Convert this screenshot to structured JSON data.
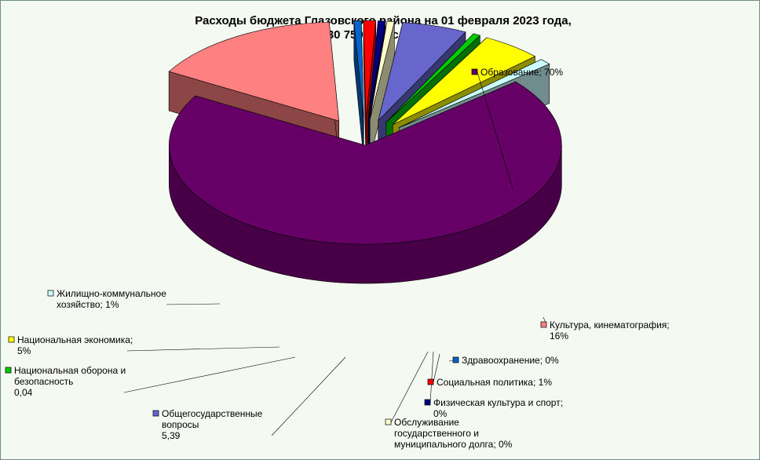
{
  "chart_data": {
    "type": "pie",
    "title_lines": [
      "Расходы бюджета Глазовского района на 01  февраля 2023 года,",
      "30 750,3 тыс. руб.,",
      "в %"
    ],
    "slices": [
      {
        "category": "Образование",
        "value": 70,
        "color": "#660066",
        "label_lines": [
          "Образование;  70%"
        ]
      },
      {
        "category": "Культура, кинематография",
        "value": 16,
        "color": "#ff8080",
        "label_lines": [
          "Культура,  кинематография;",
          "16%"
        ]
      },
      {
        "category": "Здравоохранение",
        "value": 0,
        "color": "#0066cc",
        "label_lines": [
          "Здравоохранение;  0%"
        ]
      },
      {
        "category": "Социальная политика",
        "value": 1,
        "color": "#ff0000",
        "label_lines": [
          "Социальная  политика;  1%"
        ]
      },
      {
        "category": "Физическая культура и спорт",
        "value": 0,
        "color": "#000080",
        "label_lines": [
          "Физическая культура  и спорт;",
          "0%"
        ]
      },
      {
        "category": "Обслуживание государственного и муниципального долга",
        "value": 0,
        "color": "#ffffcc",
        "label_lines": [
          "Обслуживание",
          "государственного  и",
          "муниципального  долга;  0%"
        ]
      },
      {
        "category": "Общегосударственные вопросы",
        "value": 5.39,
        "color": "#6666cc",
        "label_lines": [
          "Общегосударственные",
          "вопросы",
          "5,39"
        ]
      },
      {
        "category": "Национальная оборона и безопасность",
        "value": 0.04,
        "color": "#00cc00",
        "label_lines": [
          "Национальная  оборона  и",
          "безопасность",
          "0,04"
        ]
      },
      {
        "category": "Национальная экономика",
        "value": 5,
        "color": "#ffff00",
        "label_lines": [
          "Национальная   экономика;",
          "5%"
        ]
      },
      {
        "category": "Жилищно-коммунальное хозяйство",
        "value": 1,
        "color": "#ccffff",
        "label_lines": [
          "Жилищно-коммунальное",
          "хозяйство;  1%"
        ]
      }
    ]
  }
}
